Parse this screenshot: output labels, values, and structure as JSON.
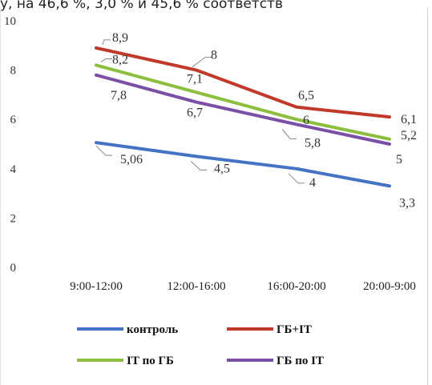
{
  "caption_text": "у, на 46,6 %, 3,0 % и 45,6 % соответств",
  "chart_data": {
    "type": "line",
    "categories": [
      "9:00-12:00",
      "12:00-16:00",
      "16:00-20:00",
      "20:00-9:00"
    ],
    "ylim": [
      0,
      10
    ],
    "yticks": [
      "0",
      "2",
      "4",
      "6",
      "8",
      "10"
    ],
    "grid": false,
    "legend_placement": "bottom",
    "series": [
      {
        "name": "контроль",
        "color": "#4472c4",
        "values": [
          5.06,
          4.5,
          4,
          3.3
        ],
        "labels": [
          "5,06",
          "4,5",
          "4",
          "3,3"
        ]
      },
      {
        "name": "ГБ+ІТ",
        "color": "#c0392b",
        "values": [
          8.9,
          8,
          6.5,
          6.1
        ],
        "labels": [
          "8,9",
          "8",
          "6,5",
          "6,1"
        ]
      },
      {
        "name": "ІТ по ГБ",
        "color": "#8cbf3f",
        "values": [
          8.2,
          7.1,
          6,
          5.2
        ],
        "labels": [
          "8,2",
          "7,1",
          "6",
          "5,2"
        ]
      },
      {
        "name": "ГБ по ІТ",
        "color": "#7b4fa6",
        "values": [
          7.8,
          6.7,
          5.8,
          5
        ],
        "labels": [
          "7,8",
          "6,7",
          "5,8",
          "5"
        ]
      }
    ]
  }
}
